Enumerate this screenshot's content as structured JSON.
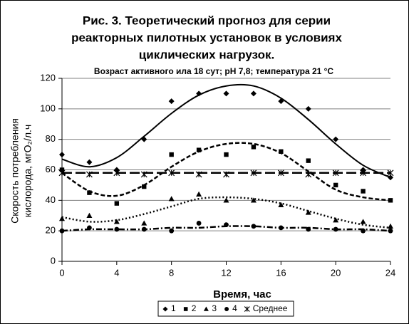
{
  "chart_data": {
    "type": "scatter",
    "title": [
      "Рис. 3.  Теоретический прогноз для серии",
      "реакторных пилотных установок в условиях",
      "циклических нагрузок."
    ],
    "subtitle": "Возраст активного ила 18 сут; pH 7,8; температура 21 °C",
    "xlabel": "Время, час",
    "ylabel": [
      "Скорость потребления",
      "кислорода, мгО₂/л.ч"
    ],
    "x": [
      0,
      2,
      4,
      6,
      8,
      10,
      12,
      14,
      16,
      18,
      20,
      22,
      24
    ],
    "xlim": [
      0,
      24
    ],
    "xticks": [
      0,
      4,
      8,
      12,
      16,
      20,
      24
    ],
    "ylim": [
      0,
      120
    ],
    "yticks": [
      0,
      20,
      40,
      60,
      80,
      100,
      120
    ],
    "grid": true,
    "series": [
      {
        "name": "1",
        "color": "#000000",
        "marker": "diamond",
        "line": "solid",
        "values": [
          70,
          65,
          60,
          80,
          105,
          110,
          110,
          110,
          105,
          100,
          80,
          60,
          55
        ],
        "curve": [
          67,
          62,
          68,
          82,
          97,
          109,
          115,
          115,
          107,
          93,
          77,
          63,
          55
        ]
      },
      {
        "name": "2",
        "color": "#000000",
        "marker": "square",
        "line": "dash",
        "values": [
          60,
          45,
          38,
          49,
          70,
          73,
          70,
          75,
          72,
          66,
          50,
          46,
          40
        ],
        "curve": [
          58,
          46,
          43,
          50,
          62,
          72,
          77,
          77,
          71,
          59,
          47,
          42,
          40
        ]
      },
      {
        "name": "3",
        "color": "#000000",
        "marker": "triangle",
        "line": "dot",
        "values": [
          28,
          30,
          26,
          25,
          41,
          44,
          40,
          40,
          37,
          32,
          27,
          26,
          23
        ],
        "curve": [
          29,
          26,
          27,
          31,
          36,
          41,
          42,
          41,
          38,
          33,
          28,
          24,
          22
        ]
      },
      {
        "name": "4",
        "color": "#000000",
        "marker": "circle",
        "line": "dashdot",
        "values": [
          20,
          22,
          21,
          21,
          20,
          25,
          24,
          23,
          22,
          21,
          21,
          20,
          20
        ],
        "curve": [
          20,
          21,
          21,
          21,
          22,
          22,
          23,
          23,
          22,
          22,
          21,
          21,
          20
        ]
      },
      {
        "name": "Среднее",
        "color": "#000000",
        "marker": "asterisk",
        "line": "longdash",
        "values": [
          58,
          57,
          58,
          57,
          58,
          57,
          57,
          58,
          58,
          57,
          58,
          58,
          58
        ],
        "curve": [
          58,
          58,
          58,
          58,
          58,
          58,
          58,
          58,
          58,
          58,
          58,
          58,
          58
        ]
      }
    ]
  }
}
